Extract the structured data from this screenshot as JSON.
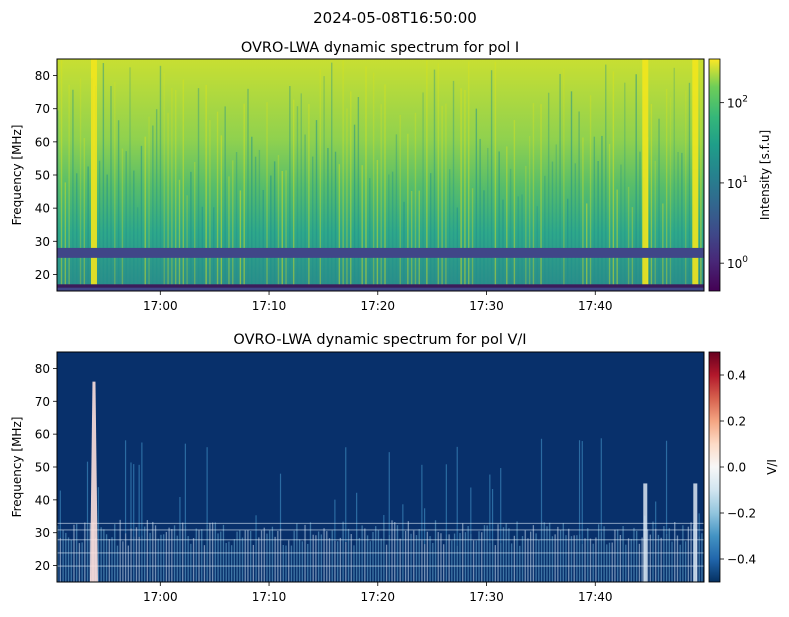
{
  "figure": {
    "suptitle": "2024-05-08T16:50:00"
  },
  "chart_data": [
    {
      "type": "heatmap",
      "title": "OVRO-LWA dynamic spectrum for pol I",
      "xlabel": "",
      "ylabel": "Frequency [MHz]",
      "x_ticks": [
        "17:00",
        "17:10",
        "17:20",
        "17:30",
        "17:40"
      ],
      "x_tick_minutes": [
        60,
        70,
        80,
        90,
        100
      ],
      "xlim_minutes_after_16h": [
        50.5,
        110
      ],
      "ylim": [
        15,
        85
      ],
      "y_ticks": [
        20,
        30,
        40,
        50,
        60,
        70,
        80
      ],
      "colormap": "viridis",
      "color_scale": "log",
      "clim": [
        0.45,
        350
      ],
      "colorbar": {
        "label": "Intensity [s.f.u]",
        "ticks": [
          {
            "base": "10",
            "exp": "0",
            "value": 1
          },
          {
            "base": "10",
            "exp": "1",
            "value": 10
          },
          {
            "base": "10",
            "exp": "2",
            "value": 100
          }
        ]
      },
      "features": {
        "masked_bands_mhz": [
          [
            25,
            28
          ],
          [
            15,
            17
          ]
        ],
        "bright_bursts_minutes": [
          53.9,
          104.6,
          109.2
        ]
      }
    },
    {
      "type": "heatmap",
      "title": "OVRO-LWA dynamic spectrum for pol V/I",
      "xlabel": "",
      "ylabel": "Frequency [MHz]",
      "x_ticks": [
        "17:00",
        "17:10",
        "17:20",
        "17:30",
        "17:40"
      ],
      "x_tick_minutes": [
        60,
        70,
        80,
        90,
        100
      ],
      "xlim_minutes_after_16h": [
        50.5,
        110
      ],
      "ylim": [
        15,
        85
      ],
      "y_ticks": [
        20,
        30,
        40,
        50,
        60,
        70,
        80
      ],
      "colormap": "RdBu_r",
      "color_scale": "linear",
      "clim": [
        -0.5,
        0.5
      ],
      "colorbar": {
        "label": "V/I",
        "ticks": [
          "0.4",
          "0.2",
          "0.0",
          "−0.2",
          "−0.4"
        ],
        "tick_values": [
          0.4,
          0.2,
          0.0,
          -0.2,
          -0.4
        ]
      },
      "features": {
        "background_value": -0.5,
        "strong_burst_minutes": 53.9,
        "strong_burst_top_mhz": 76
      }
    }
  ]
}
